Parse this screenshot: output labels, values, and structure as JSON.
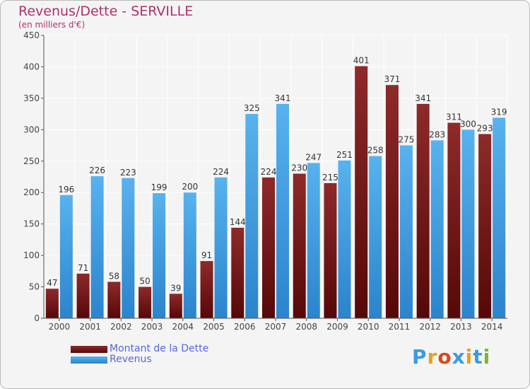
{
  "chart_data": {
    "type": "bar",
    "title": "Revenus/Dette - SERVILLE",
    "subtitle": "(en milliers d'€)",
    "xlabel": "",
    "ylabel": "",
    "ylim": [
      0,
      450
    ],
    "yticks": [
      0,
      50,
      100,
      150,
      200,
      250,
      300,
      350,
      400,
      450
    ],
    "grid": true,
    "legend_position": "bottom-left",
    "categories": [
      "2000",
      "2001",
      "2002",
      "2003",
      "2004",
      "2005",
      "2006",
      "2007",
      "2008",
      "2009",
      "2010",
      "2011",
      "2012",
      "2013",
      "2014"
    ],
    "series": [
      {
        "name": "Montant de la Dette",
        "color": "#7a1c1c",
        "values": [
          47,
          71,
          58,
          50,
          39,
          91,
          144,
          224,
          230,
          215,
          401,
          371,
          341,
          311,
          293
        ]
      },
      {
        "name": "Revenus",
        "color": "#3d9ae0",
        "values": [
          196,
          226,
          223,
          199,
          200,
          224,
          325,
          341,
          247,
          251,
          258,
          275,
          283,
          300,
          319
        ]
      }
    ]
  },
  "brand": {
    "text": "Proxiti",
    "letter_colors": [
      "#3d9ae0",
      "#e8a020",
      "#d94a1a",
      "#3d9ae0",
      "#e8a020",
      "#3d9ae0",
      "#7ab828"
    ]
  }
}
